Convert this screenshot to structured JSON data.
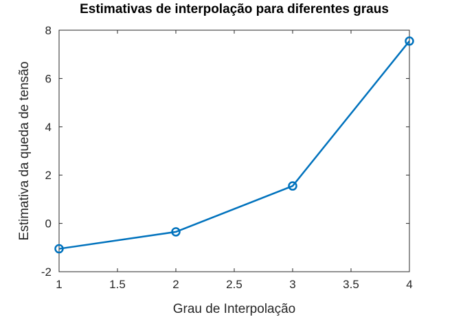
{
  "chart_data": {
    "type": "line",
    "title": "Estimativas de interpolação para diferentes graus",
    "xlabel": "Grau de Interpolação",
    "ylabel": "Estimativa da queda de tensão",
    "xlim": [
      1,
      4
    ],
    "ylim": [
      -2,
      8
    ],
    "xticks": [
      "1",
      "1.5",
      "2",
      "2.5",
      "3",
      "3.5",
      "4"
    ],
    "yticks": [
      "-2",
      "0",
      "2",
      "4",
      "6",
      "8"
    ],
    "grid": false,
    "series": [
      {
        "x": [
          1,
          2,
          3,
          4
        ],
        "y": [
          -1.05,
          -0.35,
          1.55,
          7.55
        ],
        "marker": "circle",
        "color": "#0072BD"
      }
    ]
  }
}
